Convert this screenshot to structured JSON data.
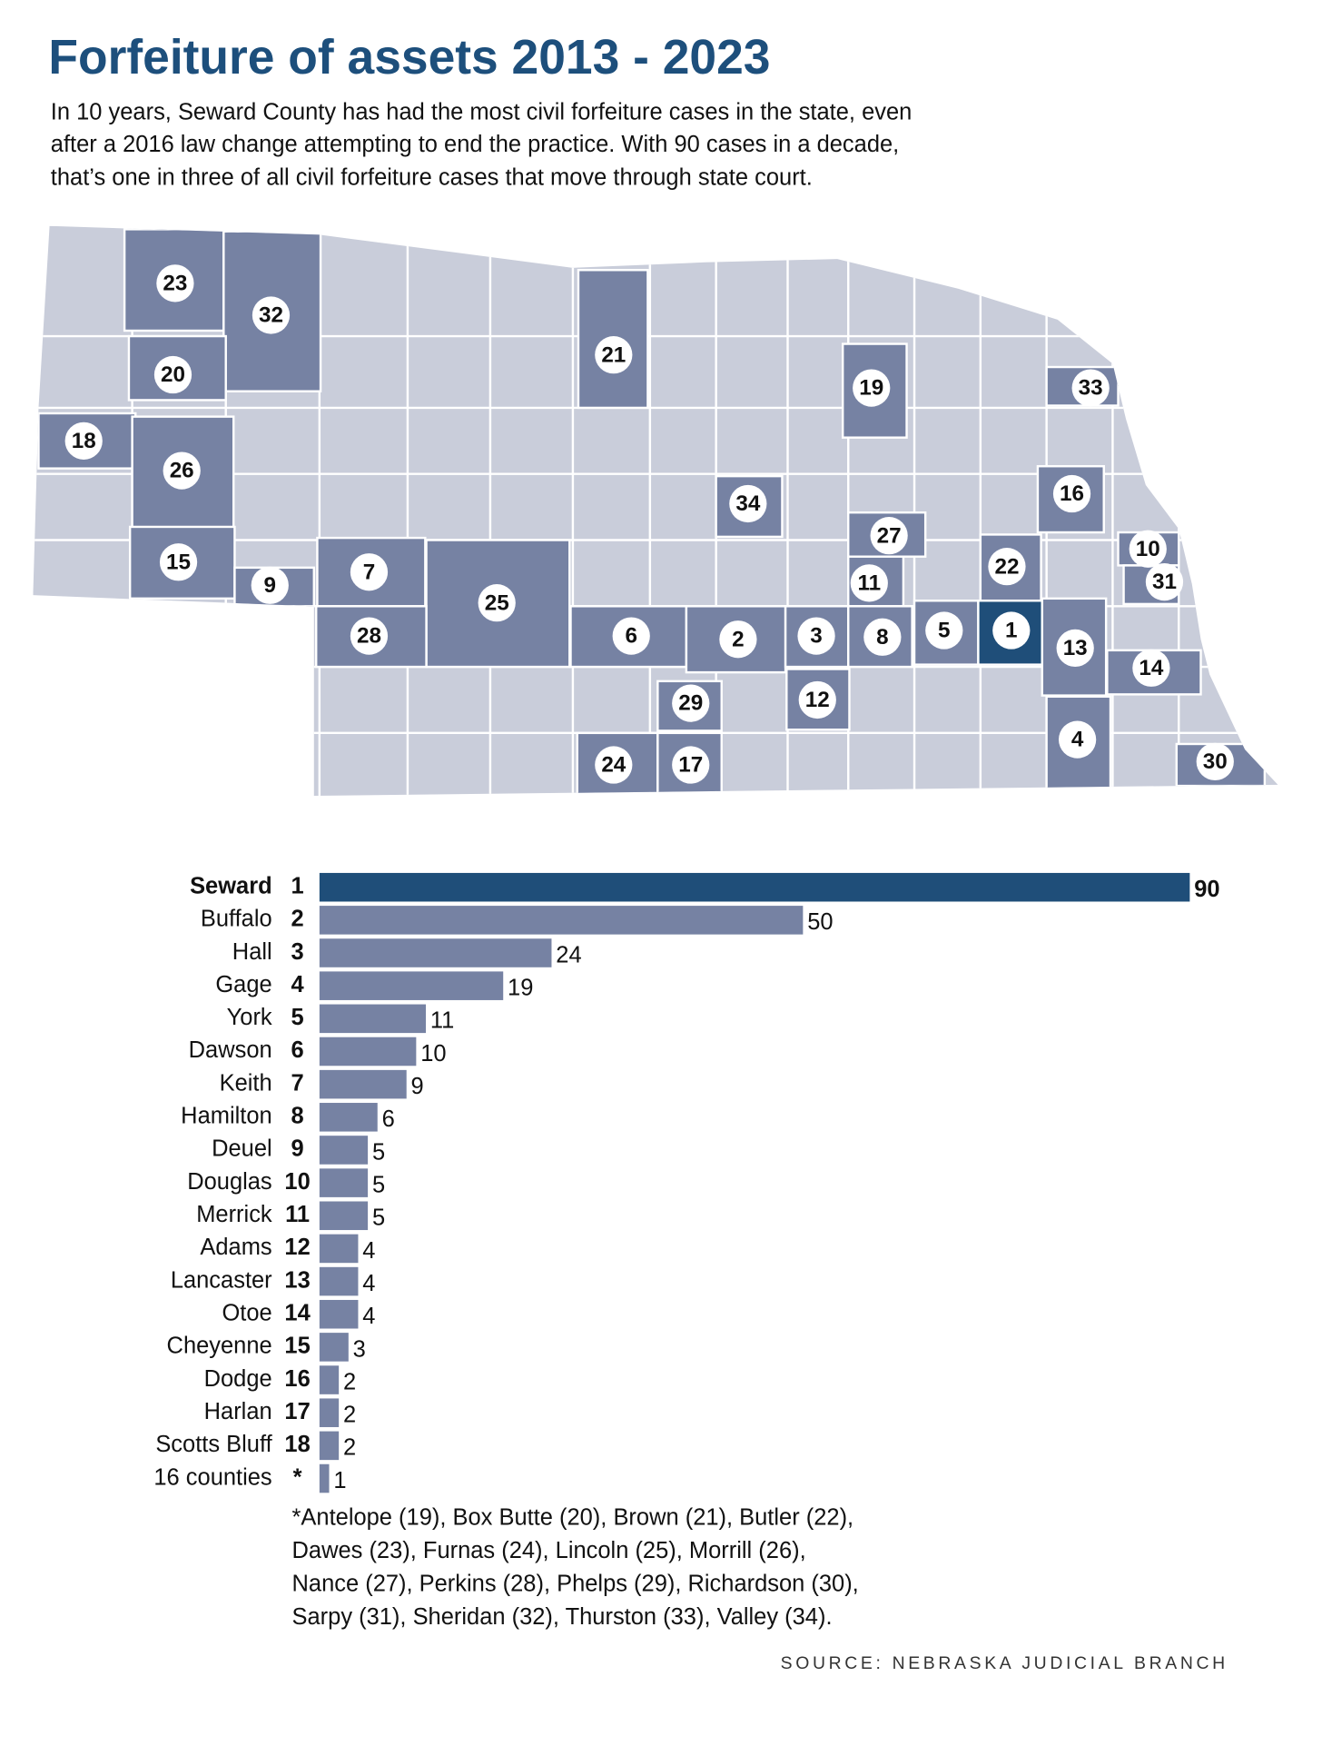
{
  "chart_data": {
    "type": "bar",
    "title": "Forfeiture of assets 2013 - 2023",
    "subtitle": [
      "In 10 years, Seward County has had the most civil forfeiture cases in the state, even",
      "after a 2016 law change attempting to end the practice. With 90 cases in a decade,",
      "that’s one in three of all civil forfeiture cases that move through state court."
    ],
    "categories": [
      "Seward",
      "Buffalo",
      "Hall",
      "Gage",
      "York",
      "Dawson",
      "Keith",
      "Hamilton",
      "Deuel",
      "Douglas",
      "Merrick",
      "Adams",
      "Lancaster",
      "Otoe",
      "Cheyenne",
      "Dodge",
      "Harlan",
      "Scotts Bluff",
      "16 counties"
    ],
    "ranks": [
      "1",
      "2",
      "3",
      "4",
      "5",
      "6",
      "7",
      "8",
      "9",
      "10",
      "11",
      "12",
      "13",
      "14",
      "15",
      "16",
      "17",
      "18",
      "*"
    ],
    "values": [
      90,
      50,
      24,
      19,
      11,
      10,
      9,
      6,
      5,
      5,
      5,
      4,
      4,
      4,
      3,
      2,
      2,
      2,
      1
    ],
    "color": "#7682a3",
    "highlight": "Seward",
    "highlight_color": "#1f4e79",
    "map_color": "#c9cdda",
    "map_labels": [
      "23",
      "32",
      "20",
      "21",
      "19",
      "33",
      "18",
      "26",
      "34",
      "16",
      "27",
      "10",
      "31",
      "15",
      "9",
      "7",
      "22",
      "11",
      "25",
      "6",
      "2",
      "3",
      "8",
      "5",
      "1",
      "13",
      "14",
      "28",
      "29",
      "12",
      "4",
      "24",
      "17",
      "30"
    ],
    "footnote": [
      "*Antelope (19), Box Butte (20), Brown (21), Butler (22),",
      "Dawes (23), Furnas (24), Lincoln (25), Morrill (26),",
      "Nance (27), Perkins (28), Phelps (29), Richardson (30),",
      "Sarpy (31), Sheridan (32), Thurston (33), Valley (34)."
    ],
    "source": "SOURCE: NEBRASKA JUDICIAL BRANCH"
  }
}
